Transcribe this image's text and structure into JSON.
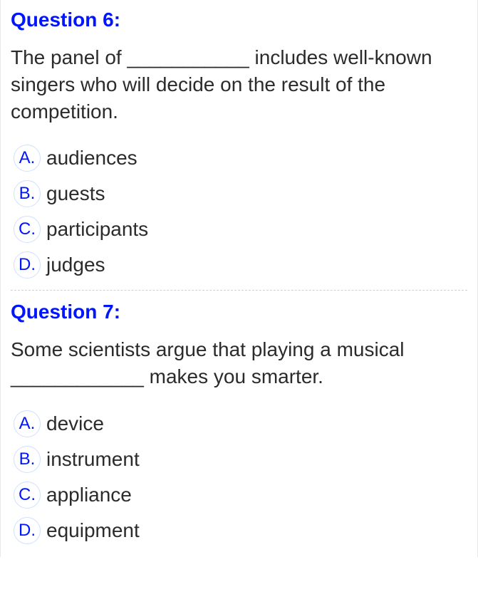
{
  "questions": [
    {
      "title": "Question 6:",
      "text": "The panel of ___________ includes well-known singers who will decide on the result of the competition.",
      "options": [
        {
          "letter": "A.",
          "text": "audiences"
        },
        {
          "letter": "B.",
          "text": "guests"
        },
        {
          "letter": "C.",
          "text": "participants"
        },
        {
          "letter": "D.",
          "text": "judges"
        }
      ]
    },
    {
      "title": "Question 7:",
      "text": "Some scientists argue that playing a musical ____________ makes you smarter.",
      "options": [
        {
          "letter": "A.",
          "text": "device"
        },
        {
          "letter": "B.",
          "text": "instrument"
        },
        {
          "letter": "C.",
          "text": "appliance"
        },
        {
          "letter": "D.",
          "text": "equipment"
        }
      ]
    }
  ],
  "style": {
    "title_color": "#0015ff",
    "text_color": "#2b2b2b",
    "option_circle_border": "#cfe0ff",
    "option_letter_color": "#0015ff",
    "divider_color": "#d0d0d0",
    "background_color": "#ffffff",
    "title_fontsize": 28,
    "text_fontsize": 28,
    "option_fontsize": 28
  }
}
